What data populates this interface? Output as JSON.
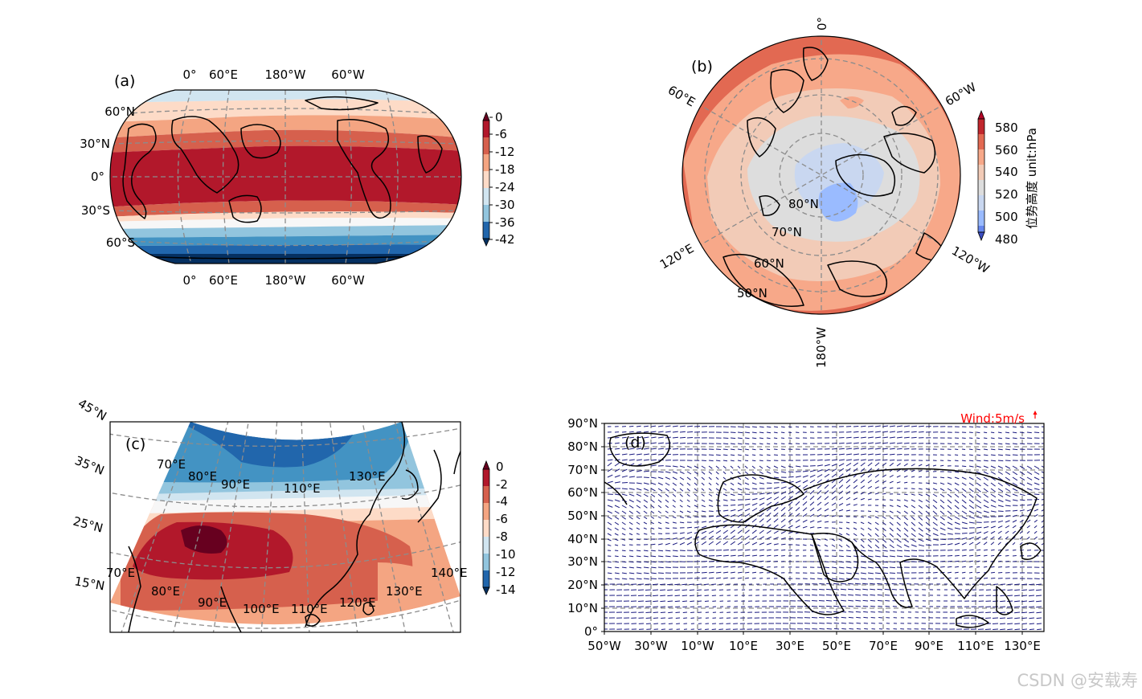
{
  "panels": {
    "a": {
      "label": "(a)",
      "lon_labels_top": [
        "0°",
        "60°E",
        "180°W",
        "60°W"
      ],
      "lon_labels_bottom": [
        "0°",
        "60°E",
        "180°W",
        "60°W"
      ],
      "lat_labels": [
        "60°N",
        "30°N",
        "0°",
        "30°S",
        "60°S"
      ],
      "colorbar": {
        "ticks": [
          "0",
          "-6",
          "-12",
          "-18",
          "-24",
          "-30",
          "-36",
          "-42"
        ]
      }
    },
    "b": {
      "label": "(b)",
      "lon_labels": [
        "0°",
        "60°E",
        "60°W",
        "120°E",
        "120°W",
        "180°W"
      ],
      "lat_labels": [
        "80°N",
        "70°N",
        "60°N",
        "50°N"
      ],
      "colorbar": {
        "ticks": [
          "580",
          "560",
          "540",
          "520",
          "500",
          "480"
        ],
        "title": "位势高度 unit:hPa"
      }
    },
    "c": {
      "label": "(c)",
      "lat_labels": [
        "45°N",
        "35°N",
        "25°N",
        "15°N"
      ],
      "lon_labels_top": [
        "70°E",
        "80°E",
        "90°E",
        "110°E",
        "130°E"
      ],
      "lon_labels_bottom": [
        "70°E",
        "80°E",
        "90°E",
        "100°E",
        "110°E",
        "120°E",
        "130°E",
        "140°E"
      ],
      "colorbar": {
        "ticks": [
          "0",
          "-2",
          "-4",
          "-6",
          "-8",
          "-10",
          "-12",
          "-14"
        ]
      }
    },
    "d": {
      "label": "(d)",
      "lat_labels": [
        "90°N",
        "80°N",
        "70°N",
        "60°N",
        "50°N",
        "40°N",
        "30°N",
        "20°N",
        "10°N",
        "0°"
      ],
      "lon_labels": [
        "50°W",
        "30°W",
        "10°W",
        "10°E",
        "30°E",
        "50°E",
        "70°E",
        "90°E",
        "110°E",
        "130°E"
      ],
      "quiver_key": "Wind:5m/s"
    }
  },
  "watermark": "CSDN @安载寿",
  "colors": {
    "rdbu": [
      "#053061",
      "#2166ac",
      "#4393c3",
      "#92c5de",
      "#d1e5f0",
      "#f7f7f7",
      "#fddbc7",
      "#f4a582",
      "#d6604d",
      "#b2182b",
      "#67001f"
    ],
    "coolwarm": [
      "#3b4cc0",
      "#6788ee",
      "#9abbff",
      "#c9d7f0",
      "#dddddd",
      "#f2cbb7",
      "#f7a889",
      "#e26952",
      "#b40426"
    ],
    "quiver": "#1a1a80",
    "quiver_key": "#ff0000"
  }
}
